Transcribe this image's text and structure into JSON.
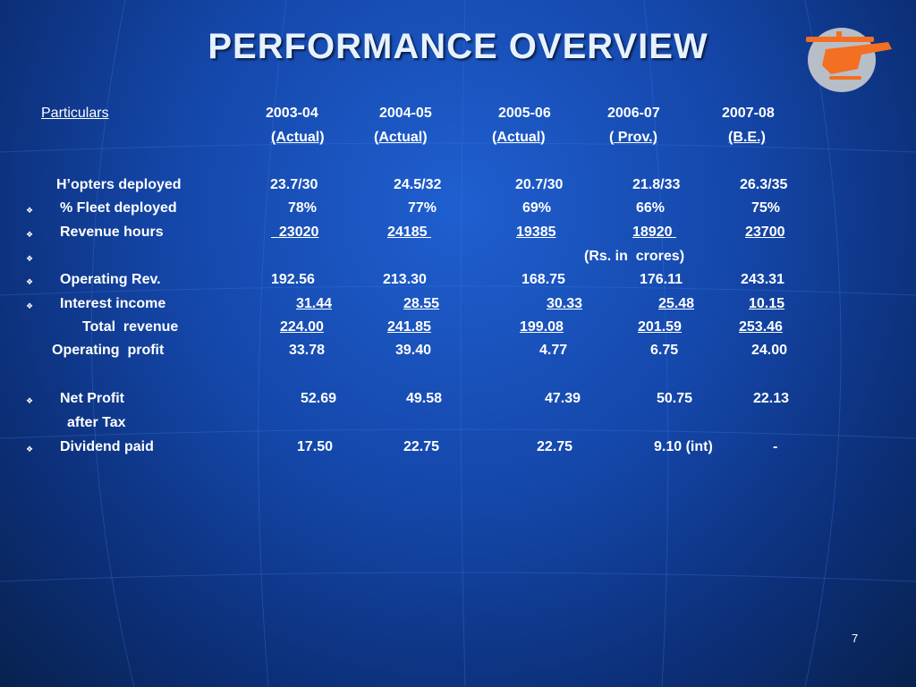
{
  "title": "PERFORMANCE  OVERVIEW",
  "bullet_char": "❖",
  "header": {
    "particulars": "Particulars",
    "years": [
      "2003-04",
      "2004-05",
      "2005-06",
      "2006-07",
      "2007-08"
    ],
    "status": [
      {
        "pre": "",
        "main": "(Actual)",
        "post": ""
      },
      {
        "pre": "(",
        "main": "Actual)",
        "post": ""
      },
      {
        "pre": "(",
        "main": "Actual",
        "post": ")"
      },
      {
        "pre": "(",
        "main": " Prov.)",
        "post": ""
      },
      {
        "pre": "",
        "main": "(B.E.)",
        "post": ""
      }
    ]
  },
  "rows": {
    "hopters": {
      "label": "H’opters deployed",
      "values": [
        "23.7/30",
        "24.5/32",
        "20.7/30",
        "21.8/33",
        "26.3/35"
      ]
    },
    "fleet": {
      "label": "% Fleet deployed",
      "values": [
        "78%",
        "77%",
        "69%",
        "66%",
        "75%"
      ]
    },
    "revenue_hours": {
      "label": "Revenue hours",
      "values": [
        "23020",
        "24185",
        "19385",
        "18920",
        "23700"
      ]
    },
    "unit_note": "(Rs. in  crores)",
    "operating_rev": {
      "label": "Operating Rev.",
      "values": [
        "192.56",
        "213.30",
        "168.75",
        "176.11",
        "243.31"
      ]
    },
    "interest_income": {
      "label": "Interest income",
      "values": [
        "31.44",
        "28.55",
        "30.33",
        "25.48",
        "10.15"
      ]
    },
    "total_revenue": {
      "label": "Total  revenue",
      "values": [
        "224.00",
        "241.85",
        "199.08",
        "201.59",
        "253.46"
      ]
    },
    "operating_profit": {
      "label": "Operating  profit",
      "values": [
        "33.78",
        "39.40",
        "4.77",
        "6.75",
        "24.00"
      ]
    },
    "net_profit": {
      "label": "Net Profit",
      "label2": "after Tax",
      "values": [
        "52.69",
        "49.58",
        "47.39",
        "50.75",
        "22.13"
      ]
    },
    "dividend": {
      "label": "Dividend paid",
      "values": [
        "17.50",
        "22.75",
        "22.75",
        "9.10 (int)",
        "-"
      ]
    }
  },
  "page_number": "7",
  "colors": {
    "background": "#1446a8",
    "title": "#e6f2ff",
    "logo_circle": "#b8bec8",
    "logo_helicopter": "#f36f21"
  }
}
